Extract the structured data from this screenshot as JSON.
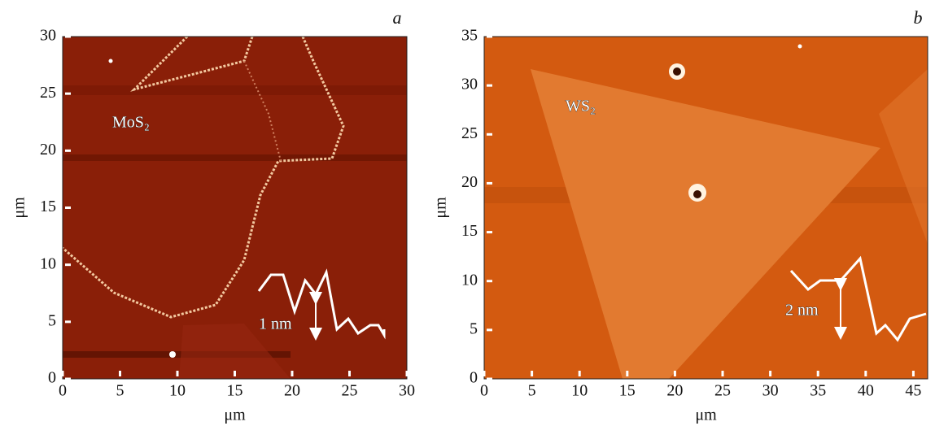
{
  "chart_data": [
    {
      "type": "image",
      "title": "a",
      "xlabel": "μm",
      "ylabel": "μm",
      "xlim": [
        0,
        30
      ],
      "ylim": [
        0,
        30
      ],
      "xticks": [
        0,
        5,
        10,
        15,
        20,
        25,
        30
      ],
      "yticks": [
        0,
        5,
        10,
        15,
        20,
        25,
        30
      ],
      "annotations": [
        "MoS₂",
        "1 nm"
      ]
    },
    {
      "type": "image",
      "title": "b",
      "xlabel": "μm",
      "ylabel": "μm",
      "xlim": [
        0,
        46.5
      ],
      "ylim": [
        0,
        35
      ],
      "xticks": [
        0,
        5,
        10,
        15,
        20,
        25,
        30,
        35,
        40,
        45
      ],
      "yticks": [
        0,
        5,
        10,
        15,
        20,
        25,
        30,
        35
      ],
      "annotations": [
        "WS₂",
        "2 nm"
      ]
    }
  ]
}
